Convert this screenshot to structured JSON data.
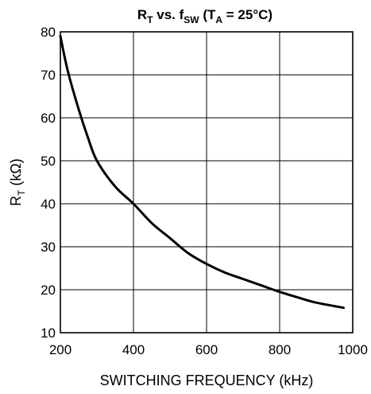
{
  "chart_data": {
    "type": "line",
    "title": {
      "r": "R",
      "r_sub": "T",
      "mid": " vs. f",
      "f_sub": "SW",
      "paren_open": " (T",
      "t_sub": "A",
      "rest": " = 25°C)"
    },
    "xlabel": "SWITCHING FREQUENCY (kHz)",
    "ylabel": {
      "main": "R",
      "sub": "T",
      "unit": " (kΩ)"
    },
    "xlim": [
      200,
      1000
    ],
    "ylim": [
      10,
      80
    ],
    "x_ticks": [
      200,
      400,
      600,
      800,
      1000
    ],
    "y_ticks": [
      10,
      20,
      30,
      40,
      50,
      60,
      70,
      80
    ],
    "x_tick_labels": [
      "200",
      "400",
      "600",
      "800",
      "1000"
    ],
    "y_tick_labels": [
      "10",
      "20",
      "30",
      "40",
      "50",
      "60",
      "70",
      "80"
    ],
    "grid": true,
    "series": [
      {
        "x": [
          200,
          220,
          250,
          275,
          300,
          350,
          400,
          450,
          500,
          550,
          600,
          650,
          700,
          750,
          800,
          850,
          900,
          975
        ],
        "y": [
          79,
          71,
          62,
          55.5,
          50,
          44,
          40,
          35.5,
          32,
          28.5,
          26,
          24,
          22.5,
          21,
          19.5,
          18.2,
          17,
          15.8
        ]
      }
    ],
    "colors": {
      "line": "#000000",
      "grid": "#000000",
      "background": "#ffffff"
    }
  }
}
